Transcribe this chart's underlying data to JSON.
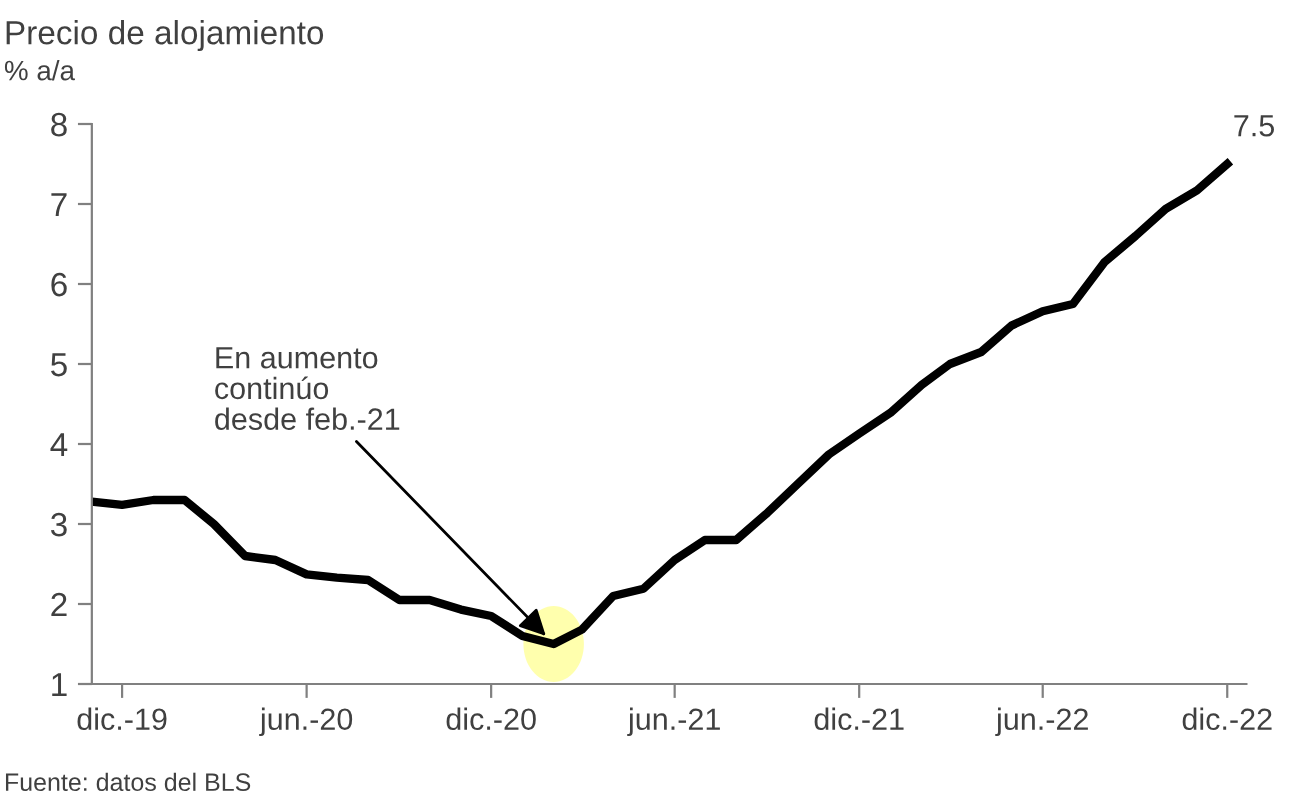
{
  "chart_data": {
    "type": "line",
    "title": "Precio de alojamiento",
    "subtitle": "% a/a",
    "x": [
      "2019-11",
      "2019-12",
      "2020-01",
      "2020-02",
      "2020-03",
      "2020-04",
      "2020-05",
      "2020-06",
      "2020-07",
      "2020-08",
      "2020-09",
      "2020-10",
      "2020-11",
      "2020-12",
      "2021-01",
      "2021-02",
      "2021-03",
      "2021-04",
      "2021-05",
      "2021-06",
      "2021-07",
      "2021-08",
      "2021-09",
      "2021-10",
      "2021-11",
      "2021-12",
      "2022-01",
      "2022-02",
      "2022-03",
      "2022-04",
      "2022-05",
      "2022-06",
      "2022-07",
      "2022-08",
      "2022-09",
      "2022-10",
      "2022-11",
      "2022-12"
    ],
    "series": [
      {
        "color": "#000000",
        "values": [
          3.28,
          3.24,
          3.3,
          3.3,
          3.0,
          2.6,
          2.55,
          2.37,
          2.33,
          2.3,
          2.05,
          2.05,
          1.93,
          1.85,
          1.6,
          1.5,
          1.68,
          2.1,
          2.19,
          2.55,
          2.8,
          2.8,
          3.14,
          3.5,
          3.87,
          4.13,
          4.39,
          4.74,
          5.0,
          5.15,
          5.48,
          5.66,
          5.75,
          6.27,
          6.6,
          6.94,
          7.17,
          7.5
        ]
      }
    ],
    "xlim": [
      "2019-11-01",
      "2022-12-20"
    ],
    "ylim": [
      1,
      8
    ],
    "yticks": [
      1,
      2,
      3,
      4,
      5,
      6,
      7,
      8
    ],
    "xticks": [
      {
        "value": "2019-12-01",
        "label": "dic.-19"
      },
      {
        "value": "2020-06-01",
        "label": "jun.-20"
      },
      {
        "value": "2020-12-01",
        "label": "dic.-20"
      },
      {
        "value": "2021-06-01",
        "label": "jun.-21"
      },
      {
        "value": "2021-12-01",
        "label": "dic.-21"
      },
      {
        "value": "2022-06-01",
        "label": "jun.-22"
      },
      {
        "value": "2022-12-01",
        "label": "dic.-22"
      }
    ],
    "grid": false,
    "legend": false,
    "marker": "none",
    "line_style": "solid",
    "annotations": [
      {
        "text": "7.5",
        "x": "2022-12",
        "y": 7.5
      },
      {
        "text": "En aumento\ncontinúo\ndesde feb.-21",
        "x": "2021-02",
        "y": 1.5
      },
      "Fuente: datos del BLS"
    ]
  }
}
